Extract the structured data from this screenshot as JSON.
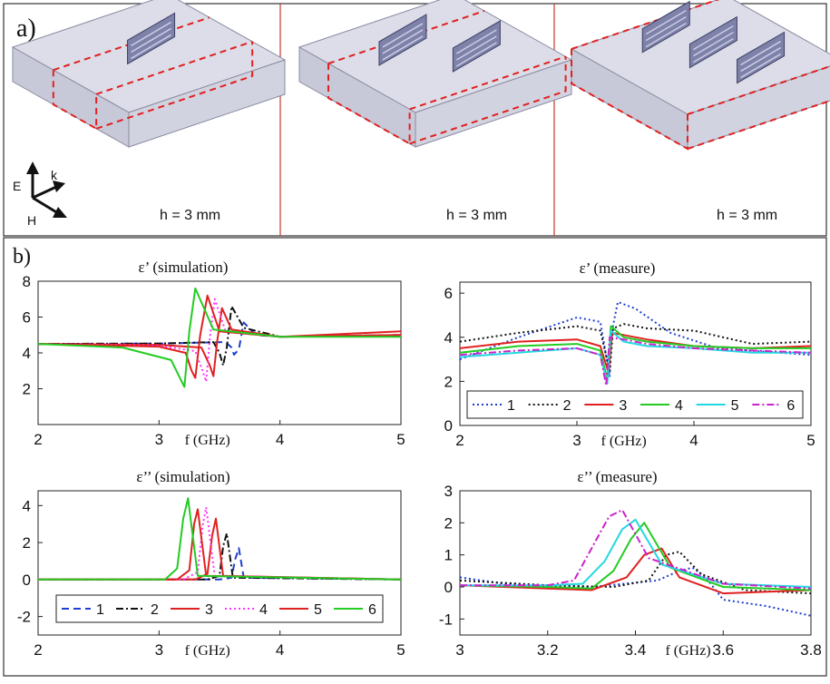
{
  "panel_a": {
    "label": "a)",
    "panels": [
      {
        "height_label": "h = 3 mm",
        "resonators": 1
      },
      {
        "height_label": "h = 3 mm",
        "resonators": 2
      },
      {
        "height_label": "h = 3 mm",
        "resonators": 3
      }
    ],
    "axes_labels": {
      "e": "E",
      "k": "k",
      "h": "H"
    }
  },
  "panel_b": {
    "label": "b)"
  },
  "colors": {
    "frame": "#333333",
    "divider": "#c0392b",
    "box_fill": "#dcdde8",
    "dash": "#e02020",
    "s1": "#1f3fd0",
    "s2": "#111111",
    "s3": "#e02020",
    "s4": "#22cc22",
    "s5": "#22d8e0",
    "s6": "#cc22cc",
    "s4sim": "#ff33ff"
  },
  "chart_data": [
    {
      "type": "line",
      "title": "ε’ (simulation)",
      "xlabel": "f (GHz)",
      "ylabel": "",
      "xlim": [
        2,
        5
      ],
      "ylim": [
        0,
        8
      ],
      "xticks": [
        2,
        3,
        4,
        5
      ],
      "yticks": [
        2,
        4,
        6,
        8
      ],
      "grid": false,
      "series": [
        {
          "name": "1",
          "dash": "dash",
          "color": "#1f3fd0",
          "x": [
            2,
            3.0,
            3.55,
            3.6,
            3.62,
            3.66,
            3.7,
            3.8,
            4,
            5
          ],
          "y": [
            4.5,
            4.52,
            4.6,
            4.3,
            3.9,
            4.2,
            5.7,
            5.0,
            4.9,
            5.0
          ]
        },
        {
          "name": "2",
          "dash": "dashdot",
          "color": "#111111",
          "x": [
            2,
            3.0,
            3.45,
            3.5,
            3.53,
            3.56,
            3.6,
            3.7,
            4,
            5
          ],
          "y": [
            4.5,
            4.52,
            4.6,
            4.0,
            3.3,
            4.3,
            6.6,
            5.4,
            4.9,
            5.0
          ]
        },
        {
          "name": "3",
          "dash": "solid",
          "color": "#e02020",
          "x": [
            2,
            3.0,
            3.35,
            3.42,
            3.45,
            3.48,
            3.52,
            3.6,
            4,
            5
          ],
          "y": [
            4.5,
            4.45,
            4.3,
            3.3,
            2.7,
            4.6,
            6.5,
            5.3,
            4.9,
            5.2
          ]
        },
        {
          "name": "4",
          "dash": "dot",
          "color": "#ff33ff",
          "x": [
            2,
            3.0,
            3.3,
            3.36,
            3.39,
            3.42,
            3.46,
            3.55,
            4,
            5
          ],
          "y": [
            4.5,
            4.4,
            4.1,
            3.0,
            2.4,
            4.8,
            7.0,
            5.2,
            4.9,
            5.0
          ]
        },
        {
          "name": "5",
          "dash": "solid",
          "color": "#e02020",
          "x": [
            2,
            3.0,
            3.22,
            3.27,
            3.3,
            3.34,
            3.4,
            3.5,
            4,
            5
          ],
          "y": [
            4.5,
            4.35,
            4.0,
            3.0,
            2.6,
            5.0,
            7.2,
            5.2,
            4.9,
            5.0
          ]
        },
        {
          "name": "6",
          "dash": "solid",
          "color": "#22cc22",
          "x": [
            2,
            2.7,
            3.1,
            3.18,
            3.21,
            3.25,
            3.3,
            3.45,
            4,
            5
          ],
          "y": [
            4.5,
            4.3,
            3.6,
            2.5,
            2.1,
            5.2,
            7.6,
            5.3,
            4.9,
            4.9
          ]
        }
      ]
    },
    {
      "type": "line",
      "title": "ε’ (measure)",
      "xlabel": "f (GHz)",
      "ylabel": "",
      "xlim": [
        2,
        5
      ],
      "ylim": [
        0,
        6.5
      ],
      "xticks": [
        2,
        3,
        4,
        5
      ],
      "yticks": [
        0,
        2,
        4,
        6
      ],
      "grid": false,
      "legend": {
        "position": "lower-center",
        "entries": [
          "1",
          "2",
          "3",
          "4",
          "5",
          "6"
        ]
      },
      "series": [
        {
          "name": "1",
          "dash": "dot",
          "color": "#1f3fd0",
          "x": [
            2,
            2.5,
            3.0,
            3.2,
            3.28,
            3.3,
            3.35,
            3.5,
            3.8,
            4.2,
            5
          ],
          "y": [
            3.0,
            4.0,
            4.9,
            4.7,
            2.2,
            4.3,
            5.6,
            5.3,
            4.2,
            3.5,
            3.2
          ]
        },
        {
          "name": "2",
          "dash": "dot",
          "color": "#111111",
          "x": [
            2,
            2.5,
            3.0,
            3.2,
            3.28,
            3.31,
            3.4,
            3.6,
            4.0,
            4.5,
            5
          ],
          "y": [
            3.8,
            4.2,
            4.5,
            4.3,
            2.5,
            4.4,
            4.6,
            4.4,
            4.3,
            3.7,
            3.8
          ]
        },
        {
          "name": "3",
          "dash": "solid",
          "color": "#e02020",
          "x": [
            2,
            2.5,
            3.0,
            3.2,
            3.27,
            3.3,
            3.4,
            3.6,
            4.0,
            4.5,
            5
          ],
          "y": [
            3.5,
            3.8,
            3.9,
            3.6,
            2.4,
            4.2,
            4.1,
            3.9,
            3.6,
            3.5,
            3.6
          ]
        },
        {
          "name": "4",
          "dash": "solid",
          "color": "#22cc22",
          "x": [
            2,
            2.5,
            3.0,
            3.2,
            3.26,
            3.29,
            3.4,
            3.6,
            4.0,
            4.5,
            5
          ],
          "y": [
            3.3,
            3.6,
            3.7,
            3.4,
            2.1,
            4.5,
            4.0,
            3.8,
            3.6,
            3.5,
            3.5
          ]
        },
        {
          "name": "5",
          "dash": "solid",
          "color": "#22d8e0",
          "x": [
            2,
            2.5,
            3.0,
            3.2,
            3.26,
            3.29,
            3.4,
            3.6,
            4.0,
            4.5,
            5
          ],
          "y": [
            3.1,
            3.3,
            3.5,
            3.2,
            1.9,
            4.3,
            3.8,
            3.6,
            3.5,
            3.3,
            3.3
          ]
        },
        {
          "name": "6",
          "dash": "dashdot",
          "color": "#cc22cc",
          "x": [
            2,
            2.5,
            3.0,
            3.2,
            3.25,
            3.28,
            3.4,
            3.6,
            4.0,
            4.5,
            5
          ],
          "y": [
            3.2,
            3.4,
            3.5,
            3.2,
            1.8,
            4.0,
            3.9,
            3.7,
            3.5,
            3.4,
            3.3
          ]
        }
      ]
    },
    {
      "type": "line",
      "title": "ε’’ (simulation)",
      "xlabel": "f (GHz)",
      "ylabel": "",
      "xlim": [
        2,
        5
      ],
      "ylim": [
        -3,
        4.8
      ],
      "xticks": [
        2,
        3,
        4,
        5
      ],
      "yticks": [
        -2,
        0,
        2,
        4
      ],
      "grid": false,
      "legend": {
        "position": "lower-center",
        "entries": [
          "1",
          "2",
          "3",
          "4",
          "5",
          "6"
        ]
      },
      "series": [
        {
          "name": "1",
          "dash": "dash",
          "color": "#1f3fd0",
          "x": [
            2,
            3.5,
            3.6,
            3.63,
            3.66,
            3.7,
            5
          ],
          "y": [
            0,
            0,
            0.1,
            1.1,
            1.7,
            0.1,
            0
          ]
        },
        {
          "name": "2",
          "dash": "dashdot",
          "color": "#111111",
          "x": [
            2,
            3.4,
            3.5,
            3.53,
            3.56,
            3.61,
            5
          ],
          "y": [
            0,
            0,
            0.2,
            1.8,
            2.5,
            0.1,
            0
          ]
        },
        {
          "name": "3",
          "dash": "solid",
          "color": "#e02020",
          "x": [
            2,
            3.3,
            3.4,
            3.44,
            3.47,
            3.53,
            5
          ],
          "y": [
            0,
            0,
            0.3,
            2.4,
            3.3,
            0.2,
            0
          ]
        },
        {
          "name": "4",
          "dash": "dot",
          "color": "#ff33ff",
          "x": [
            2,
            3.2,
            3.32,
            3.36,
            3.39,
            3.46,
            5
          ],
          "y": [
            0,
            0,
            0.4,
            2.9,
            3.9,
            0.2,
            0
          ]
        },
        {
          "name": "5",
          "dash": "solid",
          "color": "#e02020",
          "x": [
            2,
            3.15,
            3.25,
            3.29,
            3.32,
            3.39,
            5
          ],
          "y": [
            0,
            0,
            0.5,
            3.0,
            3.8,
            0.2,
            0
          ]
        },
        {
          "name": "6",
          "dash": "solid",
          "color": "#22cc22",
          "x": [
            2,
            3.05,
            3.15,
            3.2,
            3.24,
            3.32,
            5
          ],
          "y": [
            0,
            0,
            0.6,
            3.3,
            4.4,
            0.2,
            0
          ]
        }
      ]
    },
    {
      "type": "line",
      "title": "ε’’ (measure)",
      "xlabel": "f (GHz)",
      "ylabel": "",
      "xlim": [
        3,
        3.8
      ],
      "ylim": [
        -1.5,
        3
      ],
      "xticks": [
        3,
        3.2,
        3.4,
        3.6,
        3.8
      ],
      "yticks": [
        -1,
        0,
        1,
        2,
        3
      ],
      "grid": false,
      "series": [
        {
          "name": "1",
          "dash": "dot",
          "color": "#1f3fd0",
          "x": [
            3,
            3.1,
            3.3,
            3.45,
            3.5,
            3.53,
            3.56,
            3.6,
            3.7,
            3.8
          ],
          "y": [
            0.3,
            0.1,
            0,
            0.2,
            0.5,
            0.6,
            0.3,
            -0.4,
            -0.6,
            -0.9
          ]
        },
        {
          "name": "2",
          "dash": "dot",
          "color": "#111111",
          "x": [
            3,
            3.2,
            3.35,
            3.43,
            3.47,
            3.5,
            3.55,
            3.65,
            3.8
          ],
          "y": [
            0.2,
            0.05,
            0,
            0.2,
            1.0,
            1.1,
            0.4,
            -0.1,
            -0.2
          ]
        },
        {
          "name": "3",
          "dash": "solid",
          "color": "#e02020",
          "x": [
            3,
            3.2,
            3.3,
            3.38,
            3.42,
            3.46,
            3.5,
            3.6,
            3.8
          ],
          "y": [
            0.05,
            -0.05,
            -0.1,
            0.3,
            1.0,
            1.2,
            0.3,
            -0.2,
            -0.1
          ]
        },
        {
          "name": "4",
          "dash": "solid",
          "color": "#22cc22",
          "x": [
            3,
            3.2,
            3.3,
            3.35,
            3.39,
            3.42,
            3.48,
            3.6,
            3.8
          ],
          "y": [
            0.05,
            0,
            -0.05,
            0.5,
            1.5,
            2.0,
            0.6,
            0,
            -0.1
          ]
        },
        {
          "name": "5",
          "dash": "solid",
          "color": "#22d8e0",
          "x": [
            3,
            3.2,
            3.28,
            3.33,
            3.37,
            3.4,
            3.46,
            3.6,
            3.8
          ],
          "y": [
            0.05,
            0.05,
            0.1,
            0.8,
            1.8,
            2.1,
            0.7,
            0.1,
            0
          ]
        },
        {
          "name": "6",
          "dash": "dashdot",
          "color": "#cc22cc",
          "x": [
            3,
            3.2,
            3.26,
            3.3,
            3.34,
            3.37,
            3.43,
            3.6,
            3.8
          ],
          "y": [
            0.05,
            0.05,
            0.2,
            1.2,
            2.2,
            2.4,
            0.9,
            0.1,
            -0.05
          ]
        }
      ]
    }
  ]
}
